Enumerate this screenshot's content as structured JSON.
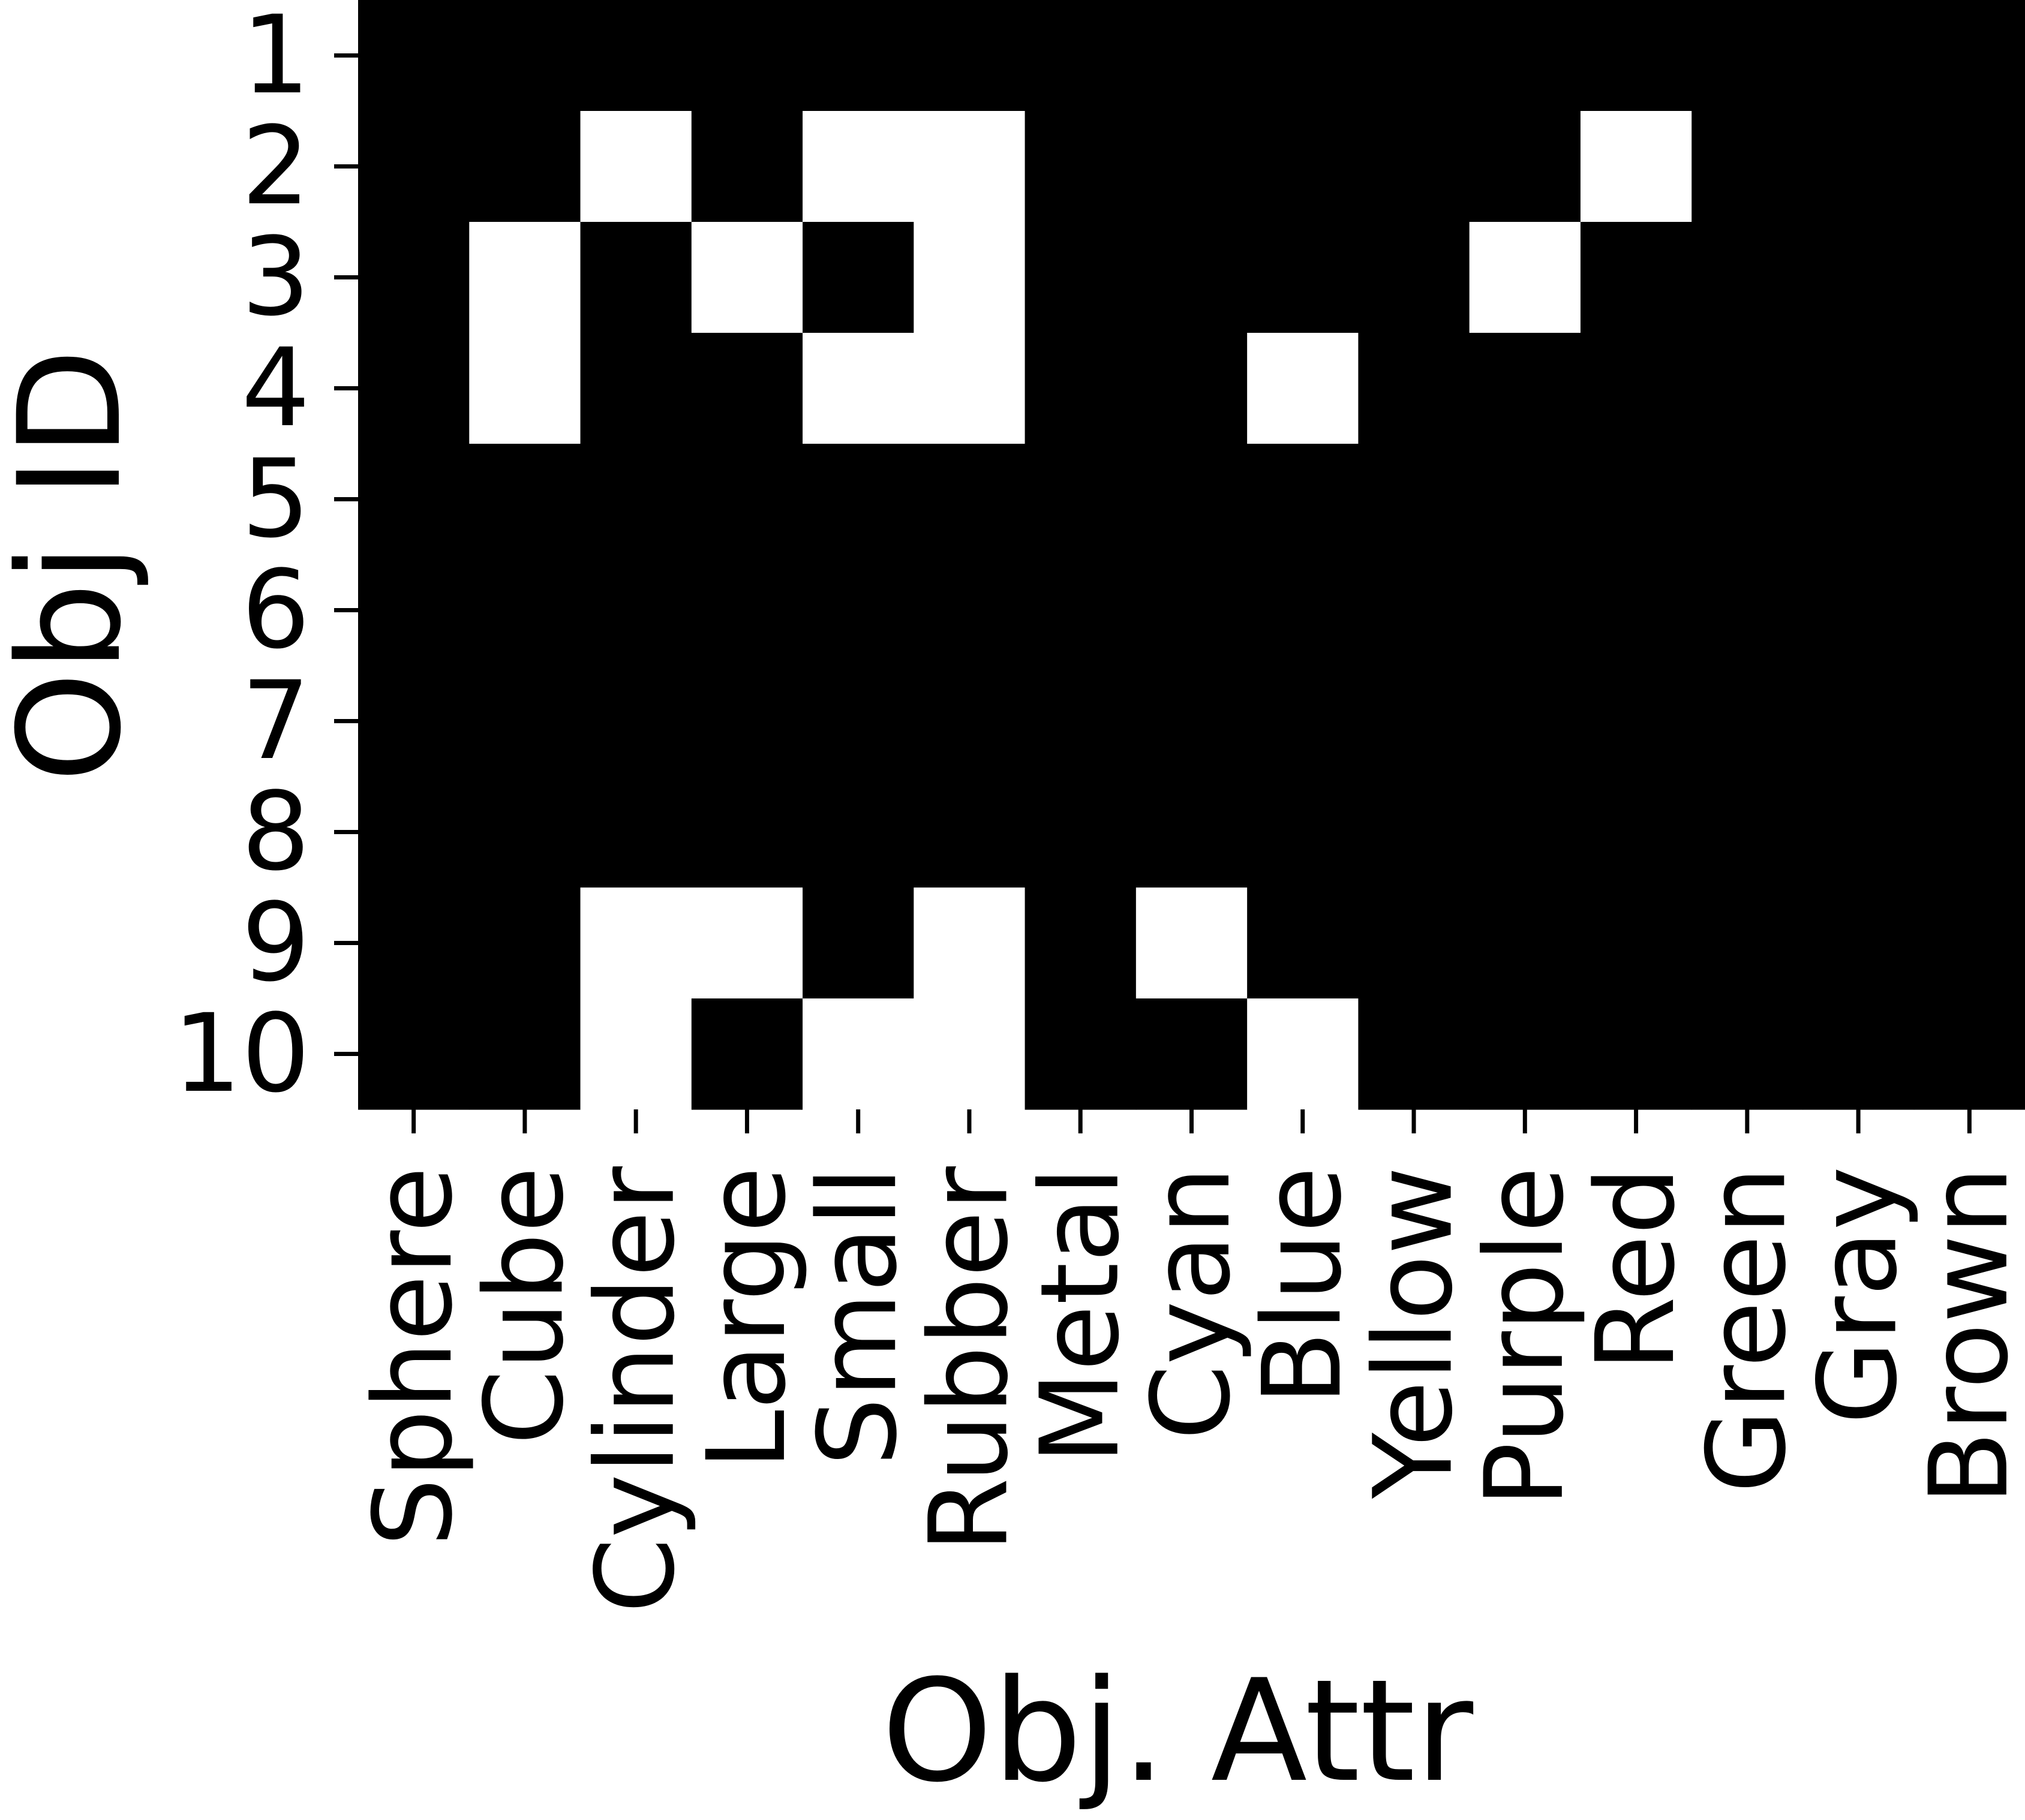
{
  "chart_data": {
    "type": "heatmap",
    "xlabel": "Obj. Attr",
    "ylabel": "Obj ID",
    "x_categories": [
      "Sphere",
      "Cube",
      "Cylinder",
      "Large",
      "Small",
      "Rubber",
      "Metal",
      "Cyan",
      "Blue",
      "Yellow",
      "Purple",
      "Red",
      "Green",
      "Gray",
      "Brown"
    ],
    "y_categories": [
      "1",
      "2",
      "3",
      "4",
      "5",
      "6",
      "7",
      "8",
      "9",
      "10"
    ],
    "values": [
      [
        0,
        0,
        0,
        0,
        0,
        0,
        0,
        0,
        0,
        0,
        0,
        0,
        0,
        0,
        0
      ],
      [
        0,
        0,
        1,
        0,
        1,
        1,
        0,
        0,
        0,
        0,
        0,
        1,
        0,
        0,
        0
      ],
      [
        0,
        1,
        0,
        1,
        0,
        1,
        0,
        0,
        0,
        0,
        1,
        0,
        0,
        0,
        0
      ],
      [
        0,
        1,
        0,
        0,
        1,
        1,
        0,
        0,
        1,
        0,
        0,
        0,
        0,
        0,
        0
      ],
      [
        0,
        0,
        0,
        0,
        0,
        0,
        0,
        0,
        0,
        0,
        0,
        0,
        0,
        0,
        0
      ],
      [
        0,
        0,
        0,
        0,
        0,
        0,
        0,
        0,
        0,
        0,
        0,
        0,
        0,
        0,
        0
      ],
      [
        0,
        0,
        0,
        0,
        0,
        0,
        0,
        0,
        0,
        0,
        0,
        0,
        0,
        0,
        0
      ],
      [
        0,
        0,
        0,
        0,
        0,
        0,
        0,
        0,
        0,
        0,
        0,
        0,
        0,
        0,
        0
      ],
      [
        0,
        0,
        1,
        1,
        0,
        1,
        0,
        1,
        0,
        0,
        0,
        0,
        0,
        0,
        0
      ],
      [
        0,
        0,
        1,
        0,
        1,
        1,
        0,
        0,
        1,
        0,
        0,
        0,
        0,
        0,
        0
      ]
    ],
    "value_colors": {
      "0": "#000000",
      "1": "#ffffff"
    },
    "grid": false,
    "legend": "none"
  }
}
